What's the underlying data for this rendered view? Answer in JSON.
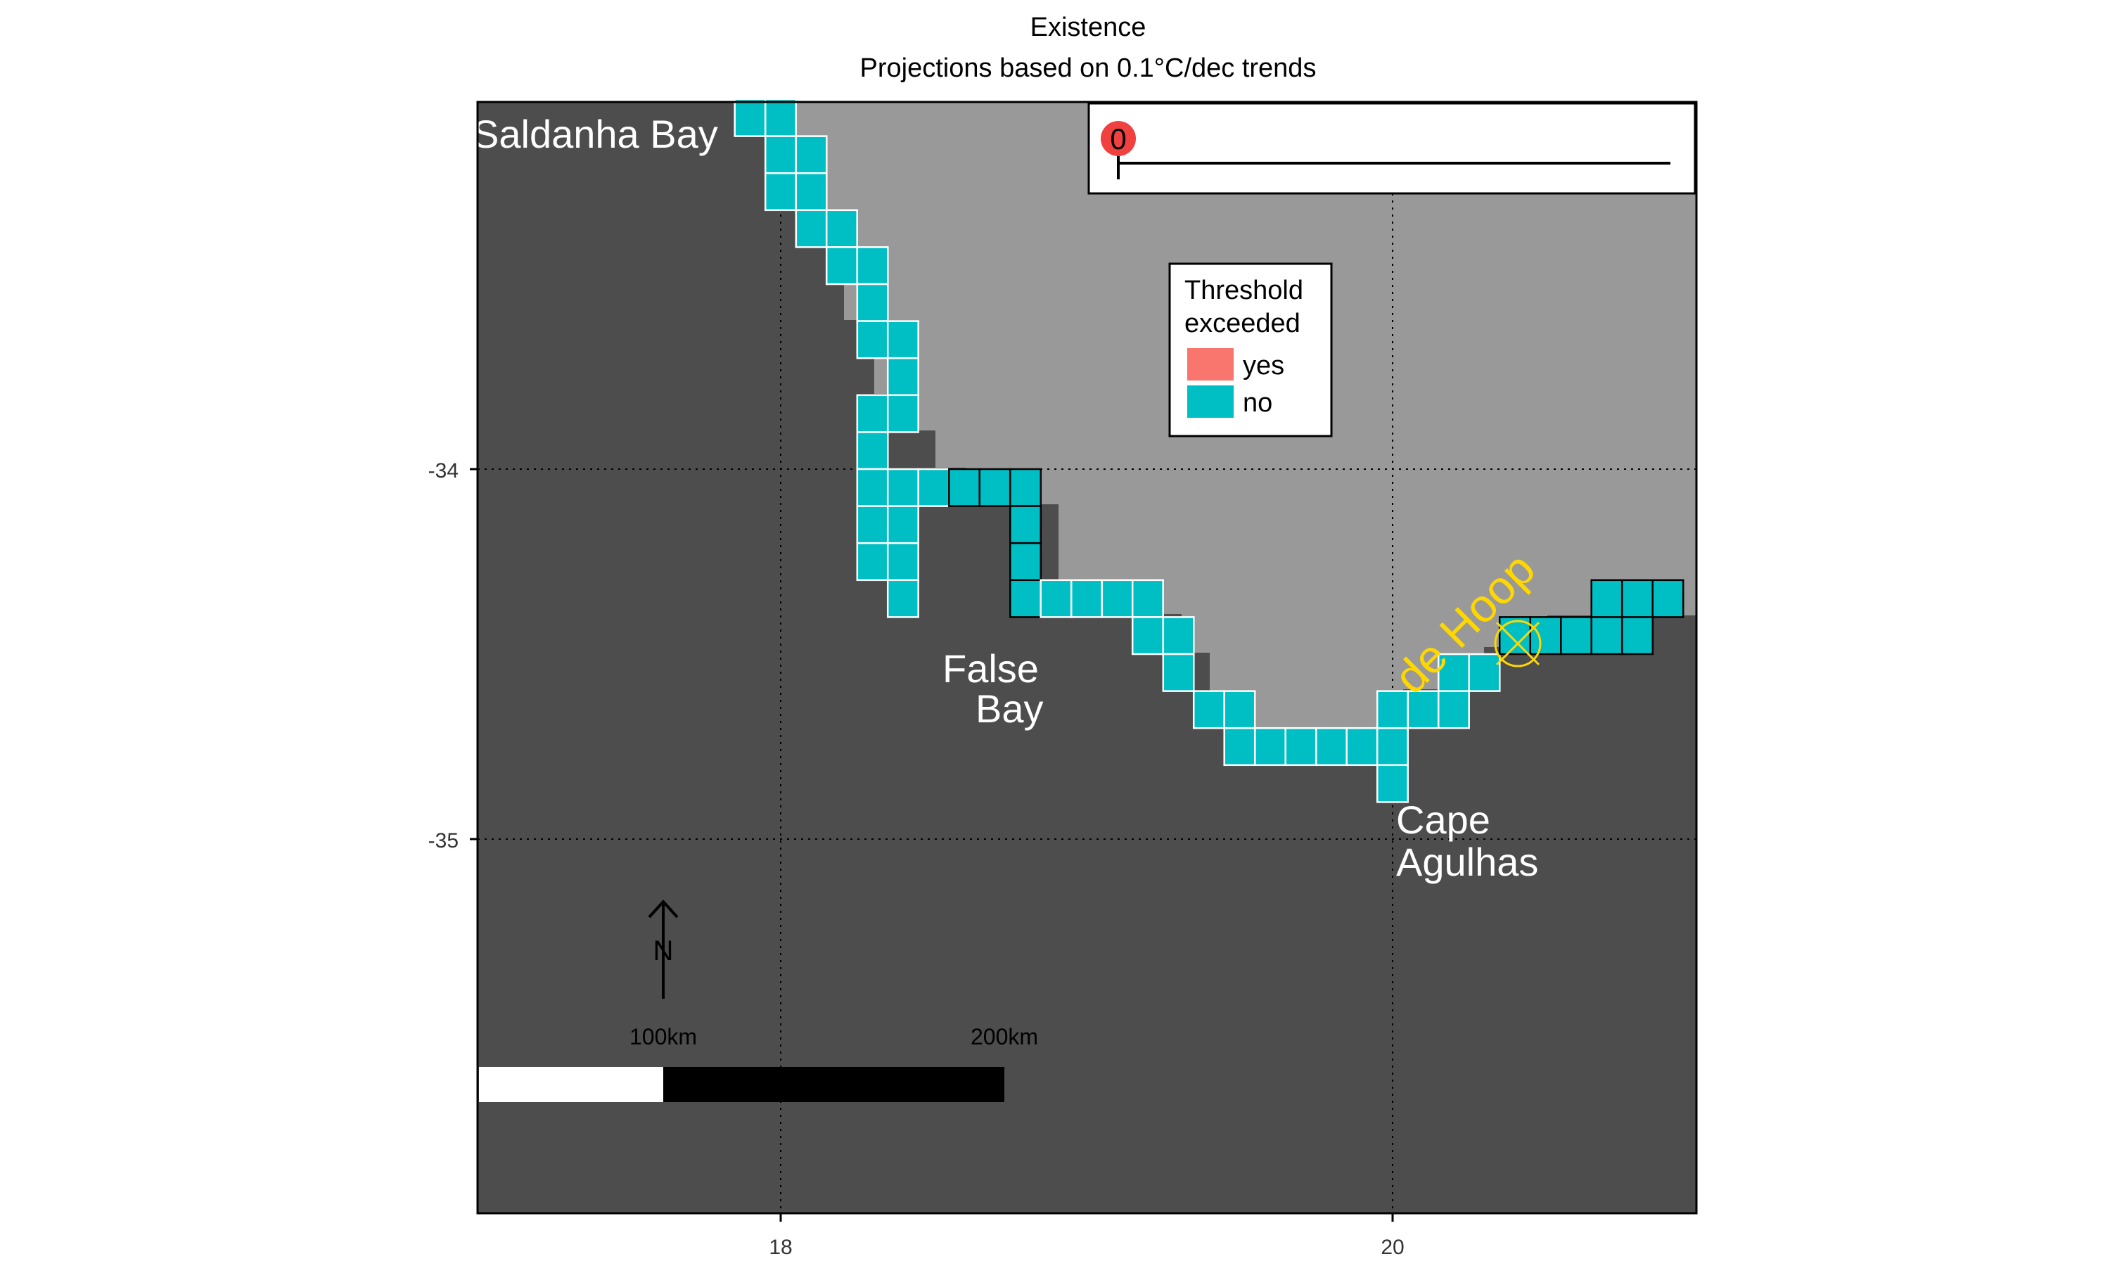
{
  "title": "Existence",
  "subtitle": "Projections based on 0.1°C/dec trends",
  "axes": {
    "x_ticks": [
      "18",
      "20"
    ],
    "y_ticks": [
      "-34",
      "-35"
    ]
  },
  "labels": {
    "saldanha": "Saldanha Bay",
    "false_bay_1": "False",
    "false_bay_2": "Bay",
    "agulhas_1": "Cape",
    "agulhas_2": "Agulhas",
    "de_hoop": "de Hoop"
  },
  "legend": {
    "title_1": "Threshold",
    "title_2": "exceeded",
    "items": [
      {
        "label": "yes",
        "color": "#F8766D"
      },
      {
        "label": "no",
        "color": "#00BFC4"
      }
    ]
  },
  "timeline": {
    "marker_value": "0",
    "marker_color": "#F04040"
  },
  "north_label": "N",
  "scalebar": {
    "label_1": "100km",
    "label_2": "200km"
  },
  "colors": {
    "ocean": "#4D4D4D",
    "land": "#999999",
    "cell_no": "#00BFC4",
    "cell_yes": "#F8766D",
    "site_label": "#FFD700",
    "place_label": "#FFFFFF"
  },
  "chart_data": {
    "type": "heatmap",
    "title": "Existence",
    "subtitle": "Projections based on 0.1°C/dec trends",
    "xlabel": "",
    "ylabel": "",
    "x_ticks": [
      18,
      20
    ],
    "y_ticks": [
      -34,
      -35
    ],
    "xlim": [
      17.0,
      21.0
    ],
    "ylim": [
      -36.0,
      -33.0
    ],
    "cell_size_deg": 0.1,
    "category": "no",
    "cells": [
      [
        17.9,
        -33.05
      ],
      [
        18.0,
        -33.05
      ],
      [
        18.0,
        -33.15
      ],
      [
        18.1,
        -33.15
      ],
      [
        18.0,
        -33.25
      ],
      [
        18.1,
        -33.25
      ],
      [
        18.1,
        -33.35
      ],
      [
        18.2,
        -33.35
      ],
      [
        18.2,
        -33.45
      ],
      [
        18.3,
        -33.45
      ],
      [
        18.3,
        -33.55
      ],
      [
        18.3,
        -33.65
      ],
      [
        18.4,
        -33.65
      ],
      [
        18.4,
        -33.75
      ],
      [
        18.3,
        -33.85
      ],
      [
        18.4,
        -33.85
      ],
      [
        18.3,
        -33.95
      ],
      [
        18.3,
        -34.05
      ],
      [
        18.4,
        -34.05
      ],
      [
        18.5,
        -34.05
      ],
      [
        18.6,
        -34.05
      ],
      [
        18.7,
        -34.05
      ],
      [
        18.8,
        -34.05
      ],
      [
        18.3,
        -34.15
      ],
      [
        18.4,
        -34.15
      ],
      [
        18.8,
        -34.15
      ],
      [
        18.3,
        -34.25
      ],
      [
        18.4,
        -34.25
      ],
      [
        18.8,
        -34.25
      ],
      [
        18.4,
        -34.35
      ],
      [
        18.8,
        -34.35
      ],
      [
        18.9,
        -34.35
      ],
      [
        19.0,
        -34.35
      ],
      [
        19.1,
        -34.35
      ],
      [
        19.2,
        -34.35
      ],
      [
        19.2,
        -34.45
      ],
      [
        19.3,
        -34.45
      ],
      [
        19.3,
        -34.55
      ],
      [
        19.4,
        -34.65
      ],
      [
        19.5,
        -34.65
      ],
      [
        19.5,
        -34.75
      ],
      [
        19.6,
        -34.75
      ],
      [
        19.7,
        -34.75
      ],
      [
        19.8,
        -34.75
      ],
      [
        19.9,
        -34.75
      ],
      [
        20.0,
        -34.75
      ],
      [
        20.0,
        -34.85
      ],
      [
        20.0,
        -34.65
      ],
      [
        20.1,
        -34.65
      ],
      [
        20.2,
        -34.65
      ],
      [
        20.2,
        -34.55
      ],
      [
        20.3,
        -34.55
      ],
      [
        20.4,
        -34.45
      ],
      [
        20.5,
        -34.45
      ],
      [
        20.6,
        -34.45
      ],
      [
        20.7,
        -34.45
      ],
      [
        20.8,
        -34.45
      ],
      [
        20.7,
        -34.35
      ],
      [
        20.8,
        -34.35
      ],
      [
        20.9,
        -34.35
      ]
    ],
    "sites": [
      {
        "name": "de Hoop",
        "lon": 20.4,
        "lat": -34.48
      }
    ],
    "places": [
      "Saldanha Bay",
      "False Bay",
      "Cape Agulhas"
    ],
    "legend": {
      "title": "Threshold exceeded",
      "entries": [
        "yes",
        "no"
      ],
      "placement": "inside-top-center"
    },
    "grid": true,
    "scalebar": [
      "100km",
      "200km"
    ]
  }
}
